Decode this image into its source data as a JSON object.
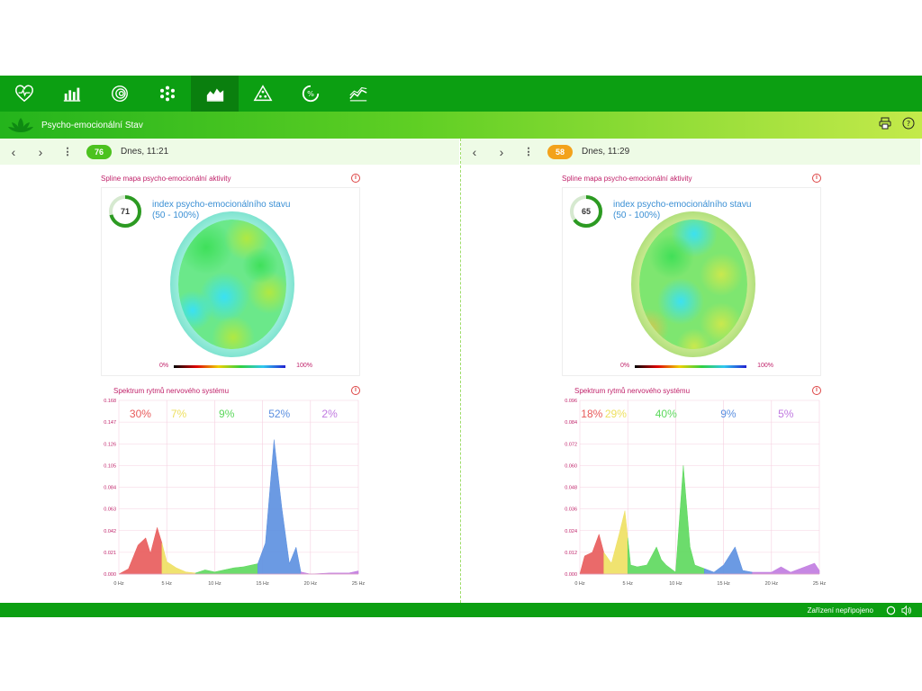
{
  "app": {
    "title": "Psycho-emocionální Stav"
  },
  "nav": {
    "items": [
      {
        "name": "heart-pulse-icon"
      },
      {
        "name": "bar-chart-icon"
      },
      {
        "name": "spiral-icon"
      },
      {
        "name": "flower-icon"
      },
      {
        "name": "area-chart-icon"
      },
      {
        "name": "pyramid-icon"
      },
      {
        "name": "percent-circle-icon"
      },
      {
        "name": "line-chart-icon"
      }
    ],
    "active_index": 4
  },
  "panels": [
    {
      "score": "76",
      "score_color": "#4cc21f",
      "date": "Dnes, 11:21",
      "map": {
        "title": "Spline mapa psycho-emocionální aktivity",
        "gauge_value": "71",
        "gauge_fraction": 0.71,
        "index_label": "index psycho-emocionálního stavu",
        "index_range": "(50 - 100%)",
        "scale_min": "0%",
        "scale_max": "100%"
      },
      "spectrum": {
        "title": "Spektrum rytmů nervového systému",
        "chart_data": {
          "type": "area",
          "xlabel": "",
          "ylabel": "",
          "x_ticks": [
            "0 Hz",
            "5 Hz",
            "10 Hz",
            "15 Hz",
            "20 Hz",
            "25 Hz"
          ],
          "y_ticks": [
            "0.000",
            "0.021",
            "0.042",
            "0.063",
            "0.084",
            "0.105",
            "0.126",
            "0.147",
            "0.168"
          ],
          "xlim": [
            0,
            25
          ],
          "ylim": [
            0,
            0.168
          ],
          "bands": [
            {
              "percent": "30%",
              "color": "#e85a5a",
              "range": [
                0,
                4.5
              ]
            },
            {
              "percent": "7%",
              "color": "#eee060",
              "range": [
                4.5,
                8
              ]
            },
            {
              "percent": "9%",
              "color": "#5cd85c",
              "range": [
                8,
                14.5
              ]
            },
            {
              "percent": "52%",
              "color": "#5b8fe0",
              "range": [
                14.5,
                19
              ]
            },
            {
              "percent": "2%",
              "color": "#c07ae0",
              "range": [
                19,
                25
              ]
            }
          ],
          "points": [
            [
              0,
              0
            ],
            [
              1,
              0.005
            ],
            [
              2,
              0.028
            ],
            [
              2.8,
              0.035
            ],
            [
              3.3,
              0.02
            ],
            [
              4,
              0.045
            ],
            [
              4.5,
              0.03
            ],
            [
              5,
              0.012
            ],
            [
              6,
              0.006
            ],
            [
              7,
              0.002
            ],
            [
              8,
              0.001
            ],
            [
              9,
              0.004
            ],
            [
              10,
              0.002
            ],
            [
              11,
              0.004
            ],
            [
              12,
              0.006
            ],
            [
              13,
              0.007
            ],
            [
              14.5,
              0.01
            ],
            [
              15.3,
              0.03
            ],
            [
              16.2,
              0.13
            ],
            [
              17,
              0.065
            ],
            [
              17.8,
              0.01
            ],
            [
              18.5,
              0.026
            ],
            [
              19,
              0.002
            ],
            [
              20,
              0
            ],
            [
              22,
              0.001
            ],
            [
              24,
              0.001
            ],
            [
              25,
              0.003
            ]
          ]
        }
      }
    },
    {
      "score": "58",
      "score_color": "#f3a21b",
      "date": "Dnes, 11:29",
      "map": {
        "title": "Spline mapa psycho-emocionální aktivity",
        "gauge_value": "65",
        "gauge_fraction": 0.65,
        "index_label": "index psycho-emocionálního stavu",
        "index_range": "(50 - 100%)",
        "scale_min": "0%",
        "scale_max": "100%"
      },
      "spectrum": {
        "title": "Spektrum rytmů nervového systému",
        "chart_data": {
          "type": "area",
          "xlabel": "",
          "ylabel": "",
          "x_ticks": [
            "0 Hz",
            "5 Hz",
            "10 Hz",
            "15 Hz",
            "20 Hz",
            "25 Hz"
          ],
          "y_ticks": [
            "0.000",
            "0.012",
            "0.024",
            "0.036",
            "0.048",
            "0.060",
            "0.072",
            "0.084",
            "0.096"
          ],
          "xlim": [
            0,
            25
          ],
          "ylim": [
            0,
            0.096
          ],
          "bands": [
            {
              "percent": "18%",
              "color": "#e85a5a",
              "range": [
                0,
                2.5
              ]
            },
            {
              "percent": "29%",
              "color": "#eee060",
              "range": [
                2.5,
                5
              ]
            },
            {
              "percent": "40%",
              "color": "#5cd85c",
              "range": [
                5,
                13
              ]
            },
            {
              "percent": "9%",
              "color": "#5b8fe0",
              "range": [
                13,
                18
              ]
            },
            {
              "percent": "5%",
              "color": "#c07ae0",
              "range": [
                18,
                25
              ]
            }
          ],
          "points": [
            [
              0,
              0
            ],
            [
              0.5,
              0.01
            ],
            [
              1.3,
              0.012
            ],
            [
              2,
              0.022
            ],
            [
              2.5,
              0.012
            ],
            [
              3.3,
              0.006
            ],
            [
              4.1,
              0.022
            ],
            [
              4.7,
              0.035
            ],
            [
              5.3,
              0.005
            ],
            [
              6,
              0.004
            ],
            [
              7,
              0.005
            ],
            [
              8,
              0.015
            ],
            [
              8.5,
              0.008
            ],
            [
              9,
              0.005
            ],
            [
              10,
              0.001
            ],
            [
              10.8,
              0.06
            ],
            [
              11.5,
              0.015
            ],
            [
              12,
              0.005
            ],
            [
              13,
              0.003
            ],
            [
              14,
              0.001
            ],
            [
              15,
              0.005
            ],
            [
              16.2,
              0.015
            ],
            [
              17,
              0.002
            ],
            [
              18,
              0.001
            ],
            [
              20,
              0.001
            ],
            [
              21,
              0.004
            ],
            [
              22,
              0.001
            ],
            [
              23,
              0.003
            ],
            [
              24.5,
              0.006
            ],
            [
              25,
              0.002
            ]
          ]
        }
      }
    }
  ],
  "status": {
    "text": "Zařízení nepřipojeno"
  }
}
